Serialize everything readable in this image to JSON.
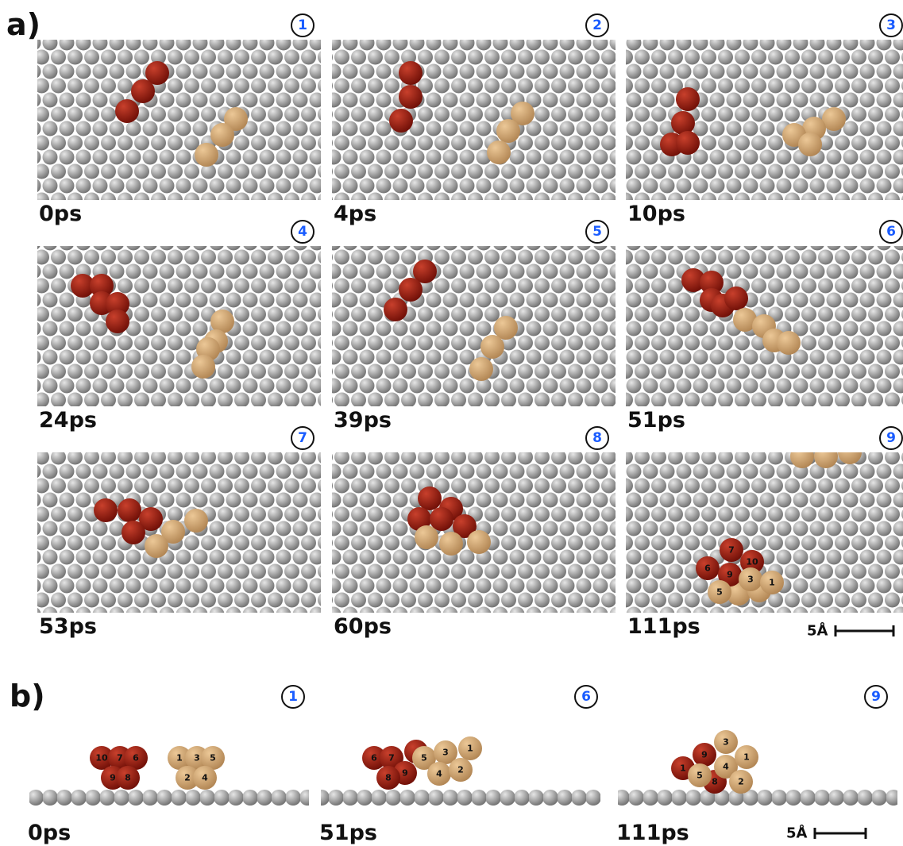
{
  "figure_label_a": "a)",
  "panels_a": [
    {
      "number": "1",
      "time": "0ps"
    },
    {
      "number": "2",
      "time": "4ps"
    },
    {
      "number": "3",
      "time": "10ps"
    },
    {
      "number": "4",
      "time": "24ps"
    },
    {
      "number": "5",
      "time": "39ps"
    },
    {
      "number": "6",
      "time": "51ps"
    },
    {
      "number": "7",
      "time": "53ps"
    },
    {
      "number": "8",
      "time": "60ps"
    },
    {
      "number": "9",
      "time": "111ps"
    }
  ],
  "panel_a9_atoms": [
    "7",
    "10",
    "6",
    "9",
    "3",
    "1",
    "5"
  ],
  "scale_bar_a": "5Å",
  "figure_label_b": "b)",
  "panels_b": [
    {
      "number": "1",
      "time": "0ps",
      "atoms": [
        "10",
        "7",
        "6",
        "9",
        "8",
        "1",
        "3",
        "5",
        "2",
        "4"
      ]
    },
    {
      "number": "6",
      "time": "51ps",
      "atoms": [
        "6",
        "7",
        "9",
        "8",
        "5",
        "3",
        "1",
        "4",
        "2"
      ]
    },
    {
      "number": "9",
      "time": "111ps",
      "atoms": [
        "9",
        "1",
        "8",
        "3",
        "4",
        "1",
        "5",
        "2"
      ]
    }
  ],
  "scale_bar_b": "5Å"
}
